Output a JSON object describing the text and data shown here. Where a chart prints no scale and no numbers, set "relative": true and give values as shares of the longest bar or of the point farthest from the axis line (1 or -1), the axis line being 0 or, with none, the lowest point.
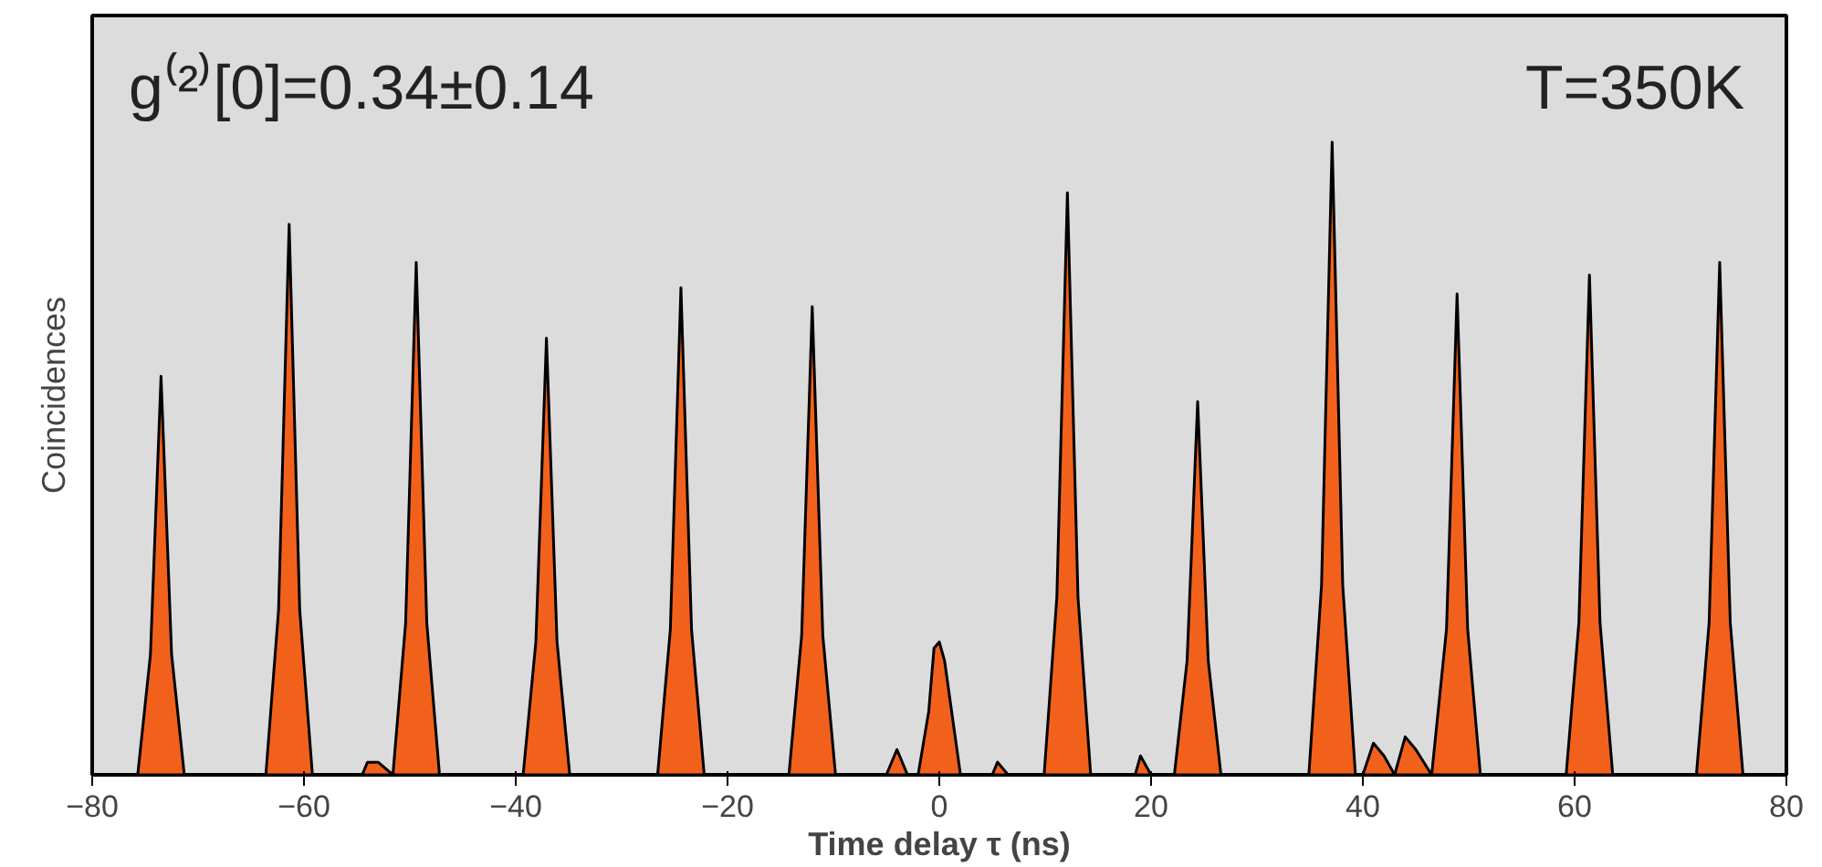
{
  "chart_data": {
    "type": "area",
    "relative": true,
    "xlabel": "Time delay τ (ns)",
    "ylabel": "Coincidences",
    "annotations": [
      "g⁽²⁾[0]=0.34±0.14",
      "T=350K"
    ],
    "xlim": [
      -80,
      80
    ],
    "xticks": [
      {
        "value": -80,
        "label": "−80"
      },
      {
        "value": -60,
        "label": "−60"
      },
      {
        "value": -40,
        "label": "−40"
      },
      {
        "value": -20,
        "label": "−20"
      },
      0,
      20,
      40,
      60,
      80
    ],
    "grid": false,
    "x": [
      -80,
      -75.7,
      -74.5,
      -73.5,
      -72.5,
      -71.3,
      -63.6,
      -62.4,
      -61.4,
      -60.4,
      -59.2,
      -54.5,
      -54,
      -53,
      -51.6,
      -50.4,
      -49.4,
      -48.4,
      -47.2,
      -39.3,
      -38.1,
      -37.1,
      -36.1,
      -34.9,
      -26.6,
      -25.4,
      -24.4,
      -23.4,
      -22.2,
      -14.2,
      -13,
      -12,
      -11,
      -9.8,
      -5,
      -4,
      -3,
      -2,
      -1,
      -0.5,
      0,
      0.5,
      1,
      2,
      5,
      5.5,
      6.5,
      9.9,
      11.1,
      12.1,
      13.1,
      14.3,
      18.5,
      19,
      20,
      22.2,
      23.4,
      24.4,
      25.4,
      26.6,
      34.9,
      36.1,
      37.1,
      38.1,
      39.3,
      40,
      41,
      42,
      43,
      44,
      45,
      46.5,
      47.9,
      48.9,
      49.9,
      51.1,
      59.2,
      60.4,
      61.4,
      62.4,
      63.6,
      71.5,
      72.7,
      73.7,
      74.7,
      75.9,
      80
    ],
    "series": [
      {
        "color": "#f2611c",
        "values": [
          0,
          0,
          0.19,
          0.63,
          0.19,
          0,
          0,
          0.26,
          0.87,
          0.26,
          0,
          0,
          0.02,
          0.02,
          0,
          0.24,
          0.81,
          0.24,
          0,
          0,
          0.21,
          0.69,
          0.21,
          0,
          0,
          0.23,
          0.77,
          0.23,
          0,
          0,
          0.22,
          0.74,
          0.22,
          0,
          0,
          0.04,
          0,
          0,
          0.1,
          0.2,
          0.21,
          0.18,
          0.12,
          0,
          0,
          0.02,
          0,
          0,
          0.28,
          0.92,
          0.28,
          0,
          0,
          0.03,
          0,
          0,
          0.18,
          0.59,
          0.18,
          0,
          0,
          0.3,
          1,
          0.3,
          0,
          0,
          0.05,
          0.03,
          0,
          0.06,
          0.04,
          0,
          0.23,
          0.76,
          0.23,
          0,
          0,
          0.24,
          0.79,
          0.24,
          0,
          0,
          0.24,
          0.81,
          0.24,
          0,
          0
        ]
      }
    ]
  }
}
